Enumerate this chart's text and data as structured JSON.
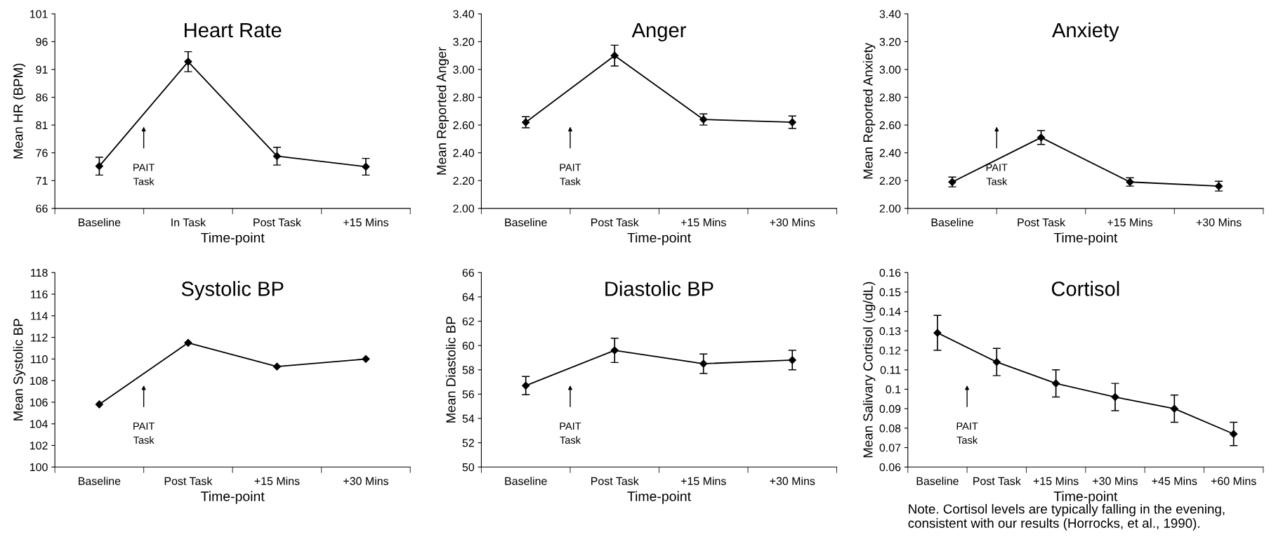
{
  "chart_data": [
    {
      "type": "line",
      "title": "Heart Rate",
      "xlabel": "Time-point",
      "ylabel": "Mean HR (BPM)",
      "categories": [
        "Baseline",
        "In Task",
        "Post Task",
        "+15 Mins"
      ],
      "series": [
        {
          "color": "#000000",
          "values": [
            73.6,
            92.4,
            75.4,
            73.5
          ],
          "errors": [
            1.6,
            1.8,
            1.6,
            1.5
          ]
        }
      ],
      "ylim": [
        66,
        101
      ],
      "yticks": [
        66,
        71,
        76,
        81,
        86,
        91,
        96,
        101
      ],
      "marker": "diamond",
      "annotations": [
        "PAIT\nTask"
      ]
    },
    {
      "type": "line",
      "title": "Anger",
      "xlabel": "Time-point",
      "ylabel": "Mean Reported Anger",
      "categories": [
        "Baseline",
        "Post Task",
        "+15 Mins",
        "+30 Mins"
      ],
      "series": [
        {
          "color": "#000000",
          "values": [
            2.62,
            3.1,
            2.64,
            2.62
          ],
          "errors": [
            0.04,
            0.075,
            0.04,
            0.045
          ]
        }
      ],
      "ylim": [
        2.0,
        3.4
      ],
      "yticks": [
        {
          "value": 2.0,
          "label": "2.00"
        },
        {
          "value": 2.2,
          "label": "2.20"
        },
        {
          "value": 2.4,
          "label": "2.40"
        },
        {
          "value": 2.6,
          "label": "2.60"
        },
        {
          "value": 2.8,
          "label": "2.80"
        },
        {
          "value": 3.0,
          "label": "3.00"
        },
        {
          "value": 3.2,
          "label": "3.20"
        },
        {
          "value": 3.4,
          "label": "3.40"
        }
      ],
      "marker": "diamond",
      "annotations": [
        "PAIT\nTask"
      ]
    },
    {
      "type": "line",
      "title": "Anxiety",
      "xlabel": "Time-point",
      "ylabel": "Mean Reported Anxiety",
      "categories": [
        "Baseline",
        "Post Task",
        "+15 Mins",
        "+30 Mins"
      ],
      "series": [
        {
          "color": "#000000",
          "values": [
            2.19,
            2.51,
            2.19,
            2.16
          ],
          "errors": [
            0.035,
            0.05,
            0.03,
            0.035
          ]
        }
      ],
      "ylim": [
        2.0,
        3.4
      ],
      "yticks": [
        {
          "value": 2.0,
          "label": "2.00"
        },
        {
          "value": 2.2,
          "label": "2.20"
        },
        {
          "value": 2.4,
          "label": "2.40"
        },
        {
          "value": 2.6,
          "label": "2.60"
        },
        {
          "value": 2.8,
          "label": "2.80"
        },
        {
          "value": 3.0,
          "label": "3.00"
        },
        {
          "value": 3.2,
          "label": "3.20"
        },
        {
          "value": 3.4,
          "label": "3.40"
        }
      ],
      "marker": "diamond",
      "annotations": [
        "PAIT\nTask"
      ]
    },
    {
      "type": "line",
      "title": "Systolic BP",
      "xlabel": "Time-point",
      "ylabel": "Mean Systolic BP",
      "categories": [
        "Baseline",
        "Post Task",
        "+15 Mins",
        "+30 Mins"
      ],
      "series": [
        {
          "color": "#000000",
          "values": [
            105.8,
            111.5,
            109.3,
            110.0
          ]
        }
      ],
      "ylim": [
        100,
        118
      ],
      "yticks": [
        100,
        102,
        104,
        106,
        108,
        110,
        112,
        114,
        116,
        118
      ],
      "marker": "diamond",
      "annotations": [
        "PAIT\nTask"
      ]
    },
    {
      "type": "line",
      "title": "Diastolic BP",
      "xlabel": "Time-point",
      "ylabel": "Mean Diastolic BP",
      "categories": [
        "Baseline",
        "Post Task",
        "+15 Mins",
        "+30 Mins"
      ],
      "series": [
        {
          "color": "#000000",
          "values": [
            56.7,
            59.6,
            58.5,
            58.8
          ],
          "errors": [
            0.75,
            1.0,
            0.8,
            0.8
          ]
        }
      ],
      "ylim": [
        50,
        66
      ],
      "yticks": [
        50,
        52,
        54,
        56,
        58,
        60,
        62,
        64,
        66
      ],
      "marker": "diamond",
      "annotations": [
        "PAIT\nTask"
      ]
    },
    {
      "type": "line",
      "title": "Cortisol",
      "xlabel": "Time-point",
      "ylabel": "Mean Salivary Cortisol (ug/dL)",
      "categories": [
        "Baseline",
        "Post Task",
        "+15 Mins",
        "+30 Mins",
        "+45 Mins",
        "+60 Mins"
      ],
      "series": [
        {
          "color": "#000000",
          "values": [
            0.129,
            0.114,
            0.103,
            0.096,
            0.09,
            0.077
          ],
          "errors": [
            0.009,
            0.007,
            0.007,
            0.007,
            0.007,
            0.006
          ]
        }
      ],
      "ylim": [
        0.06,
        0.16
      ],
      "yticks": [
        0.06,
        0.07,
        0.08,
        0.09,
        0.1,
        0.11,
        0.12,
        0.13,
        0.14,
        0.15,
        0.16
      ],
      "marker": "diamond",
      "annotations": [
        "PAIT\nTask",
        "Note. Cortisol levels are typically falling in the evening,\nconsistent with our results (Horrocks, et al., 1990)."
      ]
    }
  ]
}
